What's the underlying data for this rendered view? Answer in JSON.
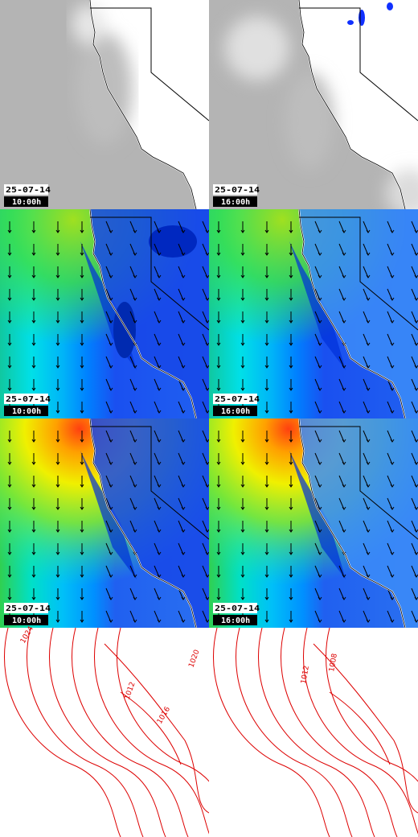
{
  "panels": [
    {
      "date": "25-07-14",
      "time": "10:00h"
    },
    {
      "date": "25-07-14",
      "time": "16:00h"
    },
    {
      "date": "25-07-14",
      "time": "10:00h"
    },
    {
      "date": "25-07-14",
      "time": "16:00h"
    },
    {
      "date": "25-07-14",
      "time": "10:00h"
    },
    {
      "date": "25-07-14",
      "time": "16:00h"
    }
  ],
  "contour_labels": [
    "1024",
    "1012",
    "1016",
    "1020",
    "1012",
    "1008"
  ]
}
